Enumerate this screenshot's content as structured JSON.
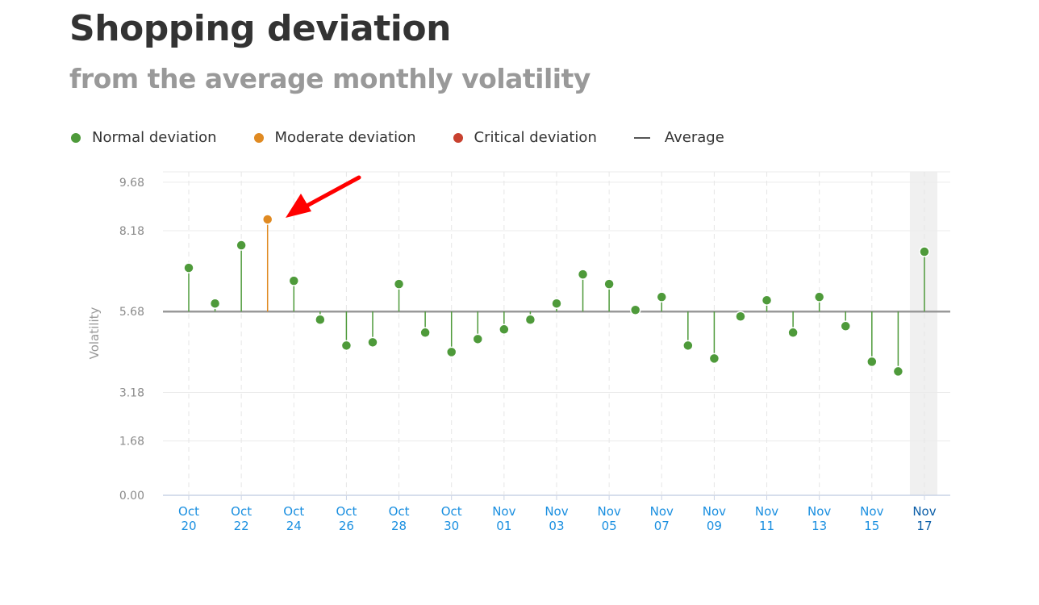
{
  "title": "Shopping deviation",
  "subtitle": "from the average monthly volatility",
  "legend": [
    {
      "label": "Normal deviation",
      "color": "#4e9a3a",
      "kind": "dot"
    },
    {
      "label": "Moderate deviation",
      "color": "#e08a22",
      "kind": "dot"
    },
    {
      "label": "Critical deviation",
      "color": "#c8412f",
      "kind": "dot"
    },
    {
      "label": "Average",
      "color": "#555555",
      "kind": "line"
    }
  ],
  "chart_data": {
    "type": "lollipop",
    "ylabel": "Volatility",
    "ylim": [
      0,
      10
    ],
    "yticks": [
      "0.00",
      "1.68",
      "3.18",
      "5.68",
      "8.18",
      "9.68"
    ],
    "average": 5.68,
    "grid": true,
    "legend_position": "top-left",
    "x": [
      "Oct 20",
      "Oct 21",
      "Oct 22",
      "Oct 23",
      "Oct 24",
      "Oct 25",
      "Oct 26",
      "Oct 27",
      "Oct 28",
      "Oct 29",
      "Oct 30",
      "Oct 31",
      "Nov 01",
      "Nov 02",
      "Nov 03",
      "Nov 04",
      "Nov 05",
      "Nov 06",
      "Nov 07",
      "Nov 08",
      "Nov 09",
      "Nov 10",
      "Nov 11",
      "Nov 12",
      "Nov 13",
      "Nov 14",
      "Nov 15",
      "Nov 16",
      "Nov 17"
    ],
    "xtick_labels": [
      [
        "Oct",
        "20"
      ],
      [
        "Oct",
        "22"
      ],
      [
        "Oct",
        "24"
      ],
      [
        "Oct",
        "26"
      ],
      [
        "Oct",
        "28"
      ],
      [
        "Oct",
        "30"
      ],
      [
        "Nov",
        "01"
      ],
      [
        "Nov",
        "03"
      ],
      [
        "Nov",
        "05"
      ],
      [
        "Nov",
        "07"
      ],
      [
        "Nov",
        "09"
      ],
      [
        "Nov",
        "11"
      ],
      [
        "Nov",
        "13"
      ],
      [
        "Nov",
        "15"
      ],
      [
        "Nov",
        "17"
      ]
    ],
    "values": [
      7.03,
      5.93,
      7.73,
      8.53,
      6.63,
      5.43,
      4.63,
      4.73,
      6.53,
      5.03,
      4.43,
      4.83,
      5.13,
      5.43,
      5.93,
      6.83,
      6.53,
      5.73,
      6.13,
      4.63,
      4.23,
      5.53,
      6.03,
      5.03,
      6.13,
      5.23,
      4.13,
      3.83,
      7.53
    ],
    "categories": [
      "normal",
      "normal",
      "normal",
      "moderate",
      "normal",
      "normal",
      "normal",
      "normal",
      "normal",
      "normal",
      "normal",
      "normal",
      "normal",
      "normal",
      "normal",
      "normal",
      "normal",
      "normal",
      "normal",
      "normal",
      "normal",
      "normal",
      "normal",
      "normal",
      "normal",
      "normal",
      "normal",
      "normal",
      "normal"
    ],
    "highlighted": "Nov 17",
    "annotation": {
      "type": "arrow",
      "color": "#ff0000",
      "points_to": "Oct 23"
    },
    "colors": {
      "normal": "#4e9a3a",
      "moderate": "#e08a22",
      "critical": "#c8412f",
      "tick": "#1a8fe0",
      "tick_highlight": "#0b5ea8"
    }
  }
}
